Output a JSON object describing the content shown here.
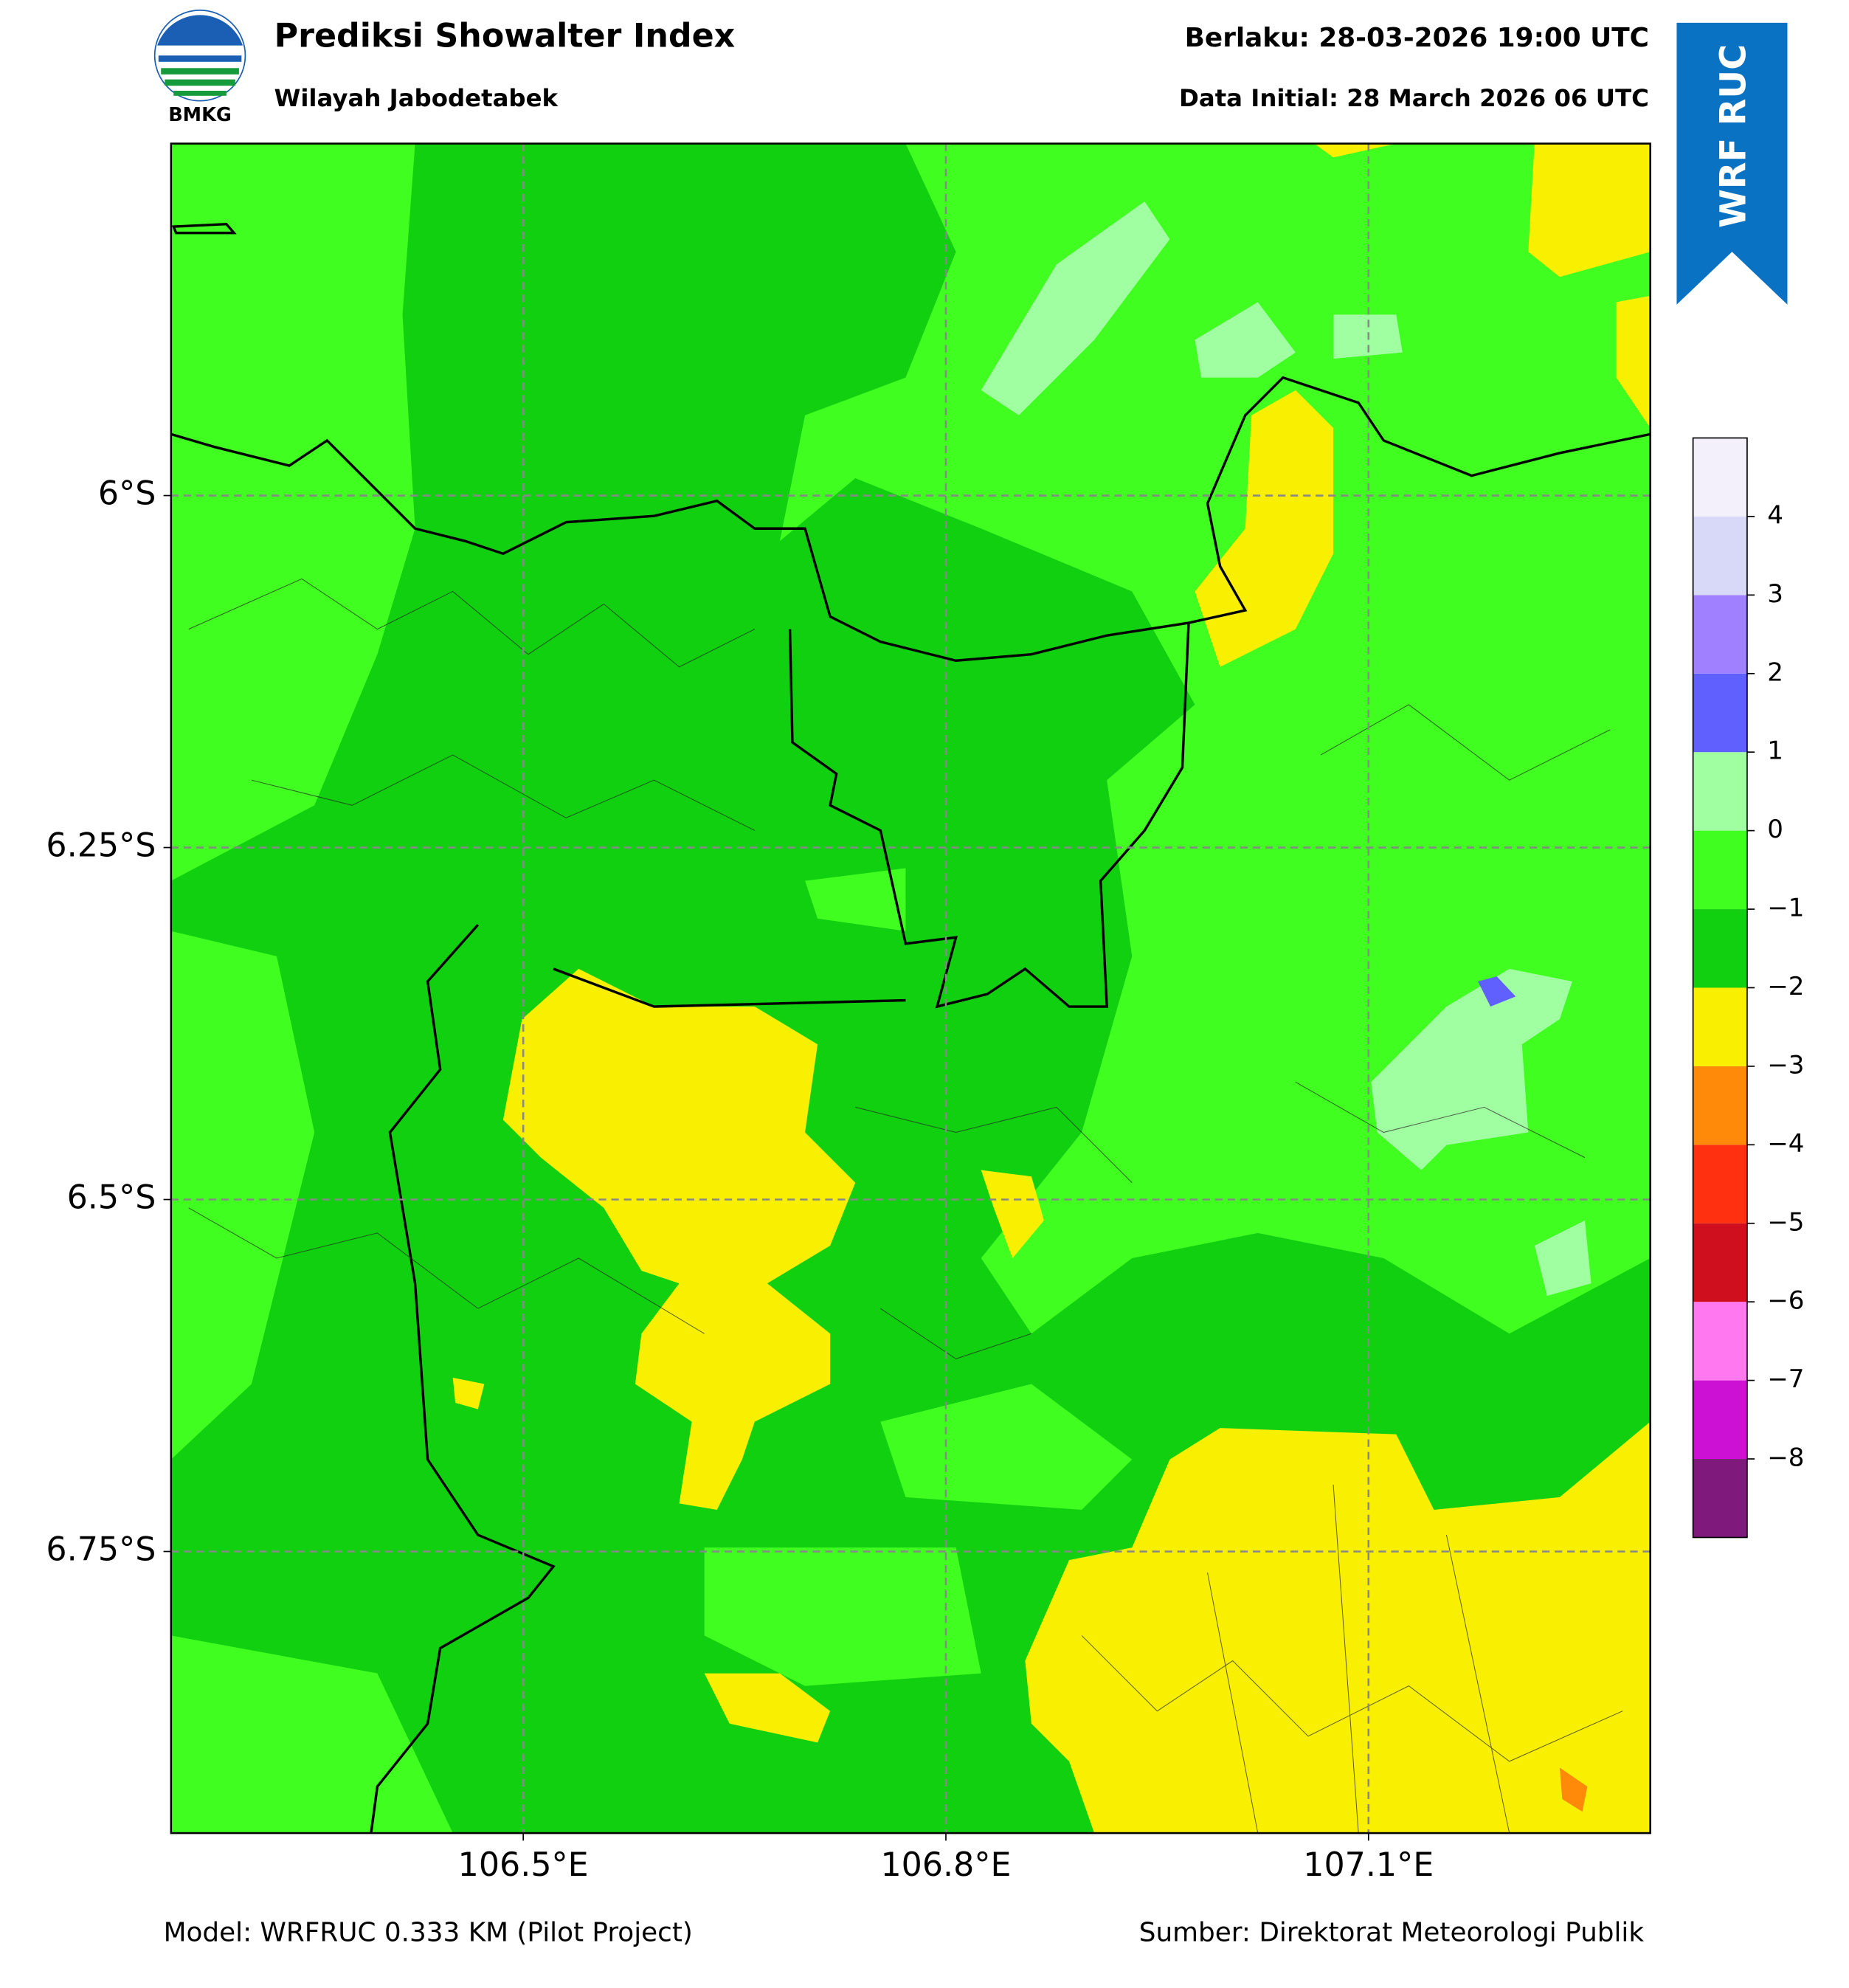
{
  "chart_data": {
    "type": "map",
    "title": "Prediksi Showalter Index",
    "subtitle": "Wilayah Jabodetabek",
    "valid_time": "Berlaku: 28-03-2026 19:00 UTC",
    "data_initial": "Data Initial: 28 March 2026 06 UTC",
    "badge": "WRF RUC",
    "logo_text": "BMKG",
    "footer_left": "Model: WRFRUC 0.333 KM (Pilot Project)",
    "footer_right": "Sumber: Direktorat Meteorologi Publik",
    "xlim": [
      106.25,
      107.3
    ],
    "ylim": [
      -6.95,
      -5.75
    ],
    "xticks": [
      {
        "value": 106.5,
        "label": "106.5°E"
      },
      {
        "value": 106.8,
        "label": "106.8°E"
      },
      {
        "value": 107.1,
        "label": "107.1°E"
      }
    ],
    "yticks": [
      {
        "value": -6,
        "label": "6°S"
      },
      {
        "value": -6.25,
        "label": "6.25°S"
      },
      {
        "value": -6.5,
        "label": "6.5°S"
      },
      {
        "value": -6.75,
        "label": "6.75°S"
      }
    ],
    "grid": true,
    "colorbar": {
      "levels": [
        -9,
        -8,
        -7,
        -6,
        -5,
        -4,
        -3,
        -2,
        -1,
        0,
        1,
        2,
        3,
        4,
        5
      ],
      "colors": [
        "#7f1a7c",
        "#cc10d4",
        "#ff78f0",
        "#cf0f1e",
        "#ff3010",
        "#ff8a0a",
        "#f8f000",
        "#10d010",
        "#40ff20",
        "#a0ffa0",
        "#6060ff",
        "#a080ff",
        "#d8d8f8",
        "#f3f0fb"
      ],
      "ticks": [
        {
          "value": -8,
          "label": "−8"
        },
        {
          "value": -7,
          "label": "−7"
        },
        {
          "value": -6,
          "label": "−6"
        },
        {
          "value": -5,
          "label": "−5"
        },
        {
          "value": -4,
          "label": "−4"
        },
        {
          "value": -3,
          "label": "−3"
        },
        {
          "value": -2,
          "label": "−2"
        },
        {
          "value": -1,
          "label": "−1"
        },
        0,
        1,
        2,
        3,
        4
      ]
    }
  }
}
